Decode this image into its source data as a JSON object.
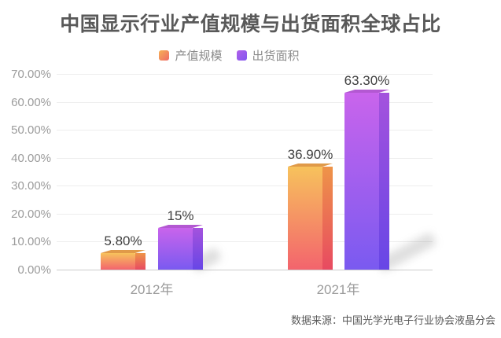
{
  "title": "中国显示行业产值规模与出货面积全球占比",
  "source_note": "数据来源：中国光学光电子行业协会液晶分会",
  "legend": {
    "items": [
      {
        "label": "产值规模",
        "swatch_color": "#f2935b"
      },
      {
        "label": "出货面积",
        "swatch_color": "#9a5bee"
      }
    ]
  },
  "colors": {
    "background": "#ffffff",
    "title_text": "#595959",
    "grid": "#ededed",
    "axis_line": "#cccccc",
    "tick_text": "#9b9b9b",
    "value_label_text": "#404040",
    "legend_text": "#8c8c8c",
    "source_text": "#595959",
    "series_orange_top": "#f7c25c",
    "series_orange_bottom": "#f3646d",
    "series_purple_top": "#c964ec",
    "series_purple_bottom": "#7a5af0"
  },
  "chart_data": {
    "type": "bar",
    "title": "中国显示行业产值规模与出货面积全球占比",
    "categories": [
      "2012年",
      "2021年"
    ],
    "series": [
      {
        "name": "产值规模",
        "values": [
          5.8,
          36.9
        ],
        "data_labels": [
          "5.80%",
          "36.90%"
        ],
        "gradient_top": "#f7c25c",
        "gradient_bottom": "#f3646d",
        "side_top": "#ee9448",
        "side_bottom": "#e84a61",
        "cap_color": "#e09a49"
      },
      {
        "name": "出货面积",
        "values": [
          15,
          63.3
        ],
        "data_labels": [
          "15%",
          "63.30%"
        ],
        "gradient_top": "#c964ec",
        "gradient_bottom": "#7a5af0",
        "side_top": "#a452dd",
        "side_bottom": "#6746e6",
        "cap_color": "#b358d2"
      }
    ],
    "xlabel": "",
    "ylabel": "",
    "ylim": [
      0,
      70
    ],
    "ytick_labels": [
      "70.00%",
      "60.00%",
      "50.00%",
      "40.00%",
      "30.00%",
      "20.00%",
      "10.00%",
      "0.00%"
    ],
    "ytick_values": [
      70,
      60,
      50,
      40,
      30,
      20,
      10,
      0
    ],
    "grid": true,
    "legend_position": "top"
  }
}
